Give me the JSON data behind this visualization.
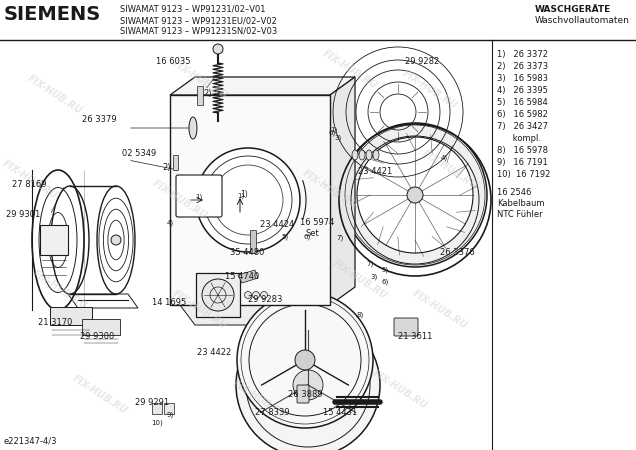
{
  "title_brand": "SIEMENS",
  "header_line1": "SIWAMAT 9123 – WP91231/02–V01",
  "header_line2": "SIWAMAT 9123 – WP91231EU/02–V02",
  "header_line3": "SIWAMAT 9123 – WP91231SN/02–V03",
  "header_right1": "WASCHGERÄTE",
  "header_right2": "Waschvollautomaten",
  "footer_text": "e221347-4/3",
  "watermark": "FIX-HUB.RU",
  "parts_list": [
    "1)   26 3372",
    "2)   26 3373",
    "3)   16 5983",
    "4)   26 3395",
    "5)   16 5984",
    "6)   16 5982",
    "7)   26 3427",
    "      kompl.",
    "8)   16 5978",
    "9)   16 7191",
    "10)  16 7192"
  ],
  "extra_parts": [
    "16 2546",
    "Kabelbaum",
    "NTC Fühler"
  ],
  "bg_color": "#ffffff",
  "line_color": "#1a1a1a",
  "text_color": "#1a1a1a",
  "wm_color": "#cccccc",
  "wm_alpha": 0.45
}
